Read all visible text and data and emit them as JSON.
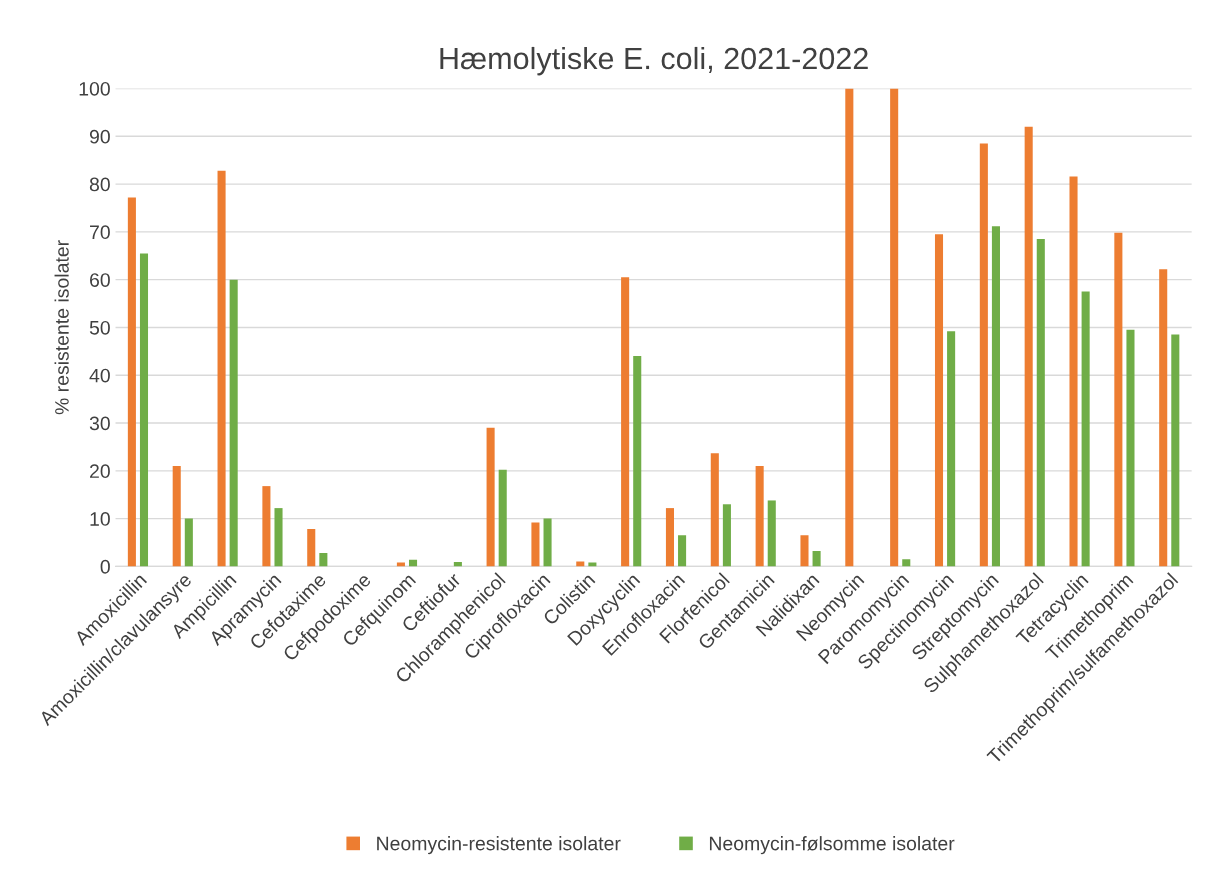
{
  "chart_data": {
    "type": "bar",
    "title": "Hæmolytiske E. coli, 2021-2022",
    "ylabel": "% resistente isolater",
    "categories": [
      "Amoxicillin",
      "Amoxicillin/clavulansyre",
      "Ampicillin",
      "Apramycin",
      "Cefotaxime",
      "Cefpodoxime",
      "Cefquinom",
      "Ceftiofur",
      "Chloramphenicol",
      "Ciprofloxacin",
      "Colistin",
      "Doxycyclin",
      "Enrofloxacin",
      "Florfenicol",
      "Gentamicin",
      "Nalidixan",
      "Neomycin",
      "Paromomycin",
      "Spectinomycin",
      "Streptomycin",
      "Sulphamethoxazol",
      "Tetracyclin",
      "Trimethoprim",
      "Trimethoprim/sulfamethoxazol"
    ],
    "series": [
      {
        "name": "Neomycin-resistente isolater",
        "color": "#ed7d31",
        "values": [
          77.2,
          21,
          82.8,
          16.8,
          7.8,
          0,
          0.8,
          0,
          29,
          9.2,
          1,
          60.5,
          12.2,
          23.7,
          21,
          6.5,
          100,
          100,
          69.5,
          88.5,
          92,
          81.6,
          69.8,
          62.2
        ]
      },
      {
        "name": "Neomycin-følsomme isolater",
        "color": "#70ad47",
        "values": [
          65.5,
          10,
          60,
          12.2,
          2.8,
          0,
          1.4,
          0.9,
          20.2,
          10,
          0.8,
          44,
          6.5,
          13,
          13.8,
          3.2,
          0,
          1.5,
          49.2,
          71.2,
          68.5,
          57.5,
          49.5,
          48.5
        ]
      }
    ],
    "ylim": [
      0,
      100
    ],
    "yticks": [
      0,
      10,
      20,
      30,
      40,
      50,
      60,
      70,
      80,
      90,
      100
    ],
    "grid": "y",
    "legend": "bottom"
  }
}
